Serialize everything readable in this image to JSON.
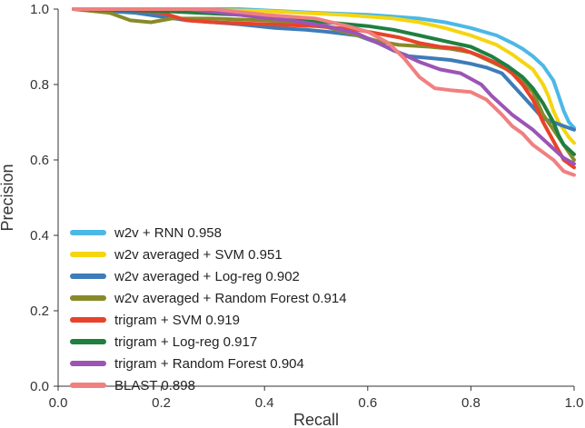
{
  "chart_data": {
    "type": "line",
    "title": "",
    "xlabel": "Recall",
    "ylabel": "Precision",
    "xlim": [
      0.0,
      1.0
    ],
    "ylim": [
      0.0,
      1.0
    ],
    "x_ticks": [
      "0.0",
      "0.2",
      "0.4",
      "0.6",
      "0.8",
      "1.0"
    ],
    "y_ticks": [
      "0.0",
      "0.2",
      "0.4",
      "0.6",
      "0.8",
      "1.0"
    ],
    "grid": false,
    "legend_position": "lower-left",
    "series": [
      {
        "name": "w2v + RNN 0.958",
        "color": "#4cb8e6",
        "points": [
          [
            0.03,
            1.0
          ],
          [
            0.2,
            1.0
          ],
          [
            0.35,
            1.0
          ],
          [
            0.5,
            0.99
          ],
          [
            0.6,
            0.985
          ],
          [
            0.65,
            0.98
          ],
          [
            0.7,
            0.975
          ],
          [
            0.75,
            0.965
          ],
          [
            0.8,
            0.95
          ],
          [
            0.85,
            0.93
          ],
          [
            0.88,
            0.91
          ],
          [
            0.9,
            0.895
          ],
          [
            0.92,
            0.875
          ],
          [
            0.94,
            0.85
          ],
          [
            0.96,
            0.81
          ],
          [
            0.97,
            0.77
          ],
          [
            0.98,
            0.73
          ],
          [
            0.99,
            0.7
          ],
          [
            1.0,
            0.685
          ]
        ]
      },
      {
        "name": "w2v averaged + SVM 0.951",
        "color": "#f5d50f",
        "points": [
          [
            0.03,
            1.0
          ],
          [
            0.2,
            1.0
          ],
          [
            0.4,
            0.995
          ],
          [
            0.55,
            0.985
          ],
          [
            0.65,
            0.975
          ],
          [
            0.7,
            0.965
          ],
          [
            0.75,
            0.95
          ],
          [
            0.8,
            0.93
          ],
          [
            0.85,
            0.905
          ],
          [
            0.88,
            0.88
          ],
          [
            0.9,
            0.86
          ],
          [
            0.92,
            0.84
          ],
          [
            0.94,
            0.8
          ],
          [
            0.95,
            0.77
          ],
          [
            0.96,
            0.73
          ],
          [
            0.97,
            0.7
          ],
          [
            0.98,
            0.68
          ],
          [
            0.99,
            0.66
          ],
          [
            1.0,
            0.645
          ]
        ]
      },
      {
        "name": "w2v averaged + Log-reg 0.902",
        "color": "#3d7cb8",
        "points": [
          [
            0.03,
            1.0
          ],
          [
            0.15,
            0.99
          ],
          [
            0.25,
            0.97
          ],
          [
            0.35,
            0.96
          ],
          [
            0.42,
            0.95
          ],
          [
            0.48,
            0.945
          ],
          [
            0.52,
            0.94
          ],
          [
            0.58,
            0.93
          ],
          [
            0.62,
            0.91
          ],
          [
            0.65,
            0.89
          ],
          [
            0.68,
            0.875
          ],
          [
            0.72,
            0.87
          ],
          [
            0.76,
            0.865
          ],
          [
            0.8,
            0.855
          ],
          [
            0.83,
            0.845
          ],
          [
            0.86,
            0.83
          ],
          [
            0.88,
            0.8
          ],
          [
            0.9,
            0.77
          ],
          [
            0.92,
            0.74
          ],
          [
            0.94,
            0.71
          ],
          [
            0.96,
            0.7
          ],
          [
            0.98,
            0.69
          ],
          [
            1.0,
            0.68
          ]
        ]
      },
      {
        "name": "w2v averaged + Random Forest 0.914",
        "color": "#888a2a",
        "points": [
          [
            0.03,
            1.0
          ],
          [
            0.1,
            0.99
          ],
          [
            0.14,
            0.97
          ],
          [
            0.18,
            0.965
          ],
          [
            0.22,
            0.975
          ],
          [
            0.3,
            0.975
          ],
          [
            0.4,
            0.97
          ],
          [
            0.5,
            0.96
          ],
          [
            0.58,
            0.93
          ],
          [
            0.62,
            0.915
          ],
          [
            0.66,
            0.905
          ],
          [
            0.72,
            0.9
          ],
          [
            0.76,
            0.895
          ],
          [
            0.8,
            0.885
          ],
          [
            0.84,
            0.86
          ],
          [
            0.87,
            0.84
          ],
          [
            0.9,
            0.81
          ],
          [
            0.92,
            0.78
          ],
          [
            0.94,
            0.72
          ],
          [
            0.96,
            0.68
          ],
          [
            0.98,
            0.64
          ],
          [
            1.0,
            0.6
          ]
        ]
      },
      {
        "name": "trigram + SVM 0.919",
        "color": "#e8432a",
        "points": [
          [
            0.03,
            1.0
          ],
          [
            0.12,
            1.0
          ],
          [
            0.2,
            0.99
          ],
          [
            0.25,
            0.97
          ],
          [
            0.3,
            0.965
          ],
          [
            0.4,
            0.96
          ],
          [
            0.5,
            0.955
          ],
          [
            0.58,
            0.945
          ],
          [
            0.62,
            0.935
          ],
          [
            0.66,
            0.925
          ],
          [
            0.7,
            0.91
          ],
          [
            0.74,
            0.9
          ],
          [
            0.78,
            0.895
          ],
          [
            0.82,
            0.875
          ],
          [
            0.86,
            0.85
          ],
          [
            0.88,
            0.83
          ],
          [
            0.9,
            0.8
          ],
          [
            0.92,
            0.76
          ],
          [
            0.94,
            0.7
          ],
          [
            0.96,
            0.65
          ],
          [
            0.98,
            0.6
          ],
          [
            1.0,
            0.58
          ]
        ]
      },
      {
        "name": "trigram + Log-reg 0.917",
        "color": "#1e8040",
        "points": [
          [
            0.03,
            1.0
          ],
          [
            0.2,
            0.995
          ],
          [
            0.35,
            0.985
          ],
          [
            0.45,
            0.975
          ],
          [
            0.52,
            0.965
          ],
          [
            0.6,
            0.955
          ],
          [
            0.65,
            0.945
          ],
          [
            0.7,
            0.93
          ],
          [
            0.75,
            0.915
          ],
          [
            0.8,
            0.9
          ],
          [
            0.84,
            0.875
          ],
          [
            0.87,
            0.85
          ],
          [
            0.9,
            0.82
          ],
          [
            0.92,
            0.79
          ],
          [
            0.94,
            0.75
          ],
          [
            0.96,
            0.7
          ],
          [
            0.97,
            0.665
          ],
          [
            0.98,
            0.64
          ],
          [
            1.0,
            0.615
          ]
        ]
      },
      {
        "name": "trigram + Random Forest 0.904",
        "color": "#9b55b5",
        "points": [
          [
            0.03,
            1.0
          ],
          [
            0.25,
            1.0
          ],
          [
            0.32,
            0.99
          ],
          [
            0.38,
            0.98
          ],
          [
            0.45,
            0.97
          ],
          [
            0.52,
            0.955
          ],
          [
            0.58,
            0.935
          ],
          [
            0.62,
            0.91
          ],
          [
            0.66,
            0.885
          ],
          [
            0.7,
            0.86
          ],
          [
            0.74,
            0.84
          ],
          [
            0.78,
            0.83
          ],
          [
            0.82,
            0.8
          ],
          [
            0.84,
            0.77
          ],
          [
            0.86,
            0.745
          ],
          [
            0.88,
            0.72
          ],
          [
            0.9,
            0.7
          ],
          [
            0.92,
            0.68
          ],
          [
            0.94,
            0.655
          ],
          [
            0.96,
            0.63
          ],
          [
            0.98,
            0.605
          ],
          [
            1.0,
            0.59
          ]
        ]
      },
      {
        "name": "BLAST 0.898",
        "color": "#f08080",
        "points": [
          [
            0.03,
            1.0
          ],
          [
            0.3,
            1.0
          ],
          [
            0.4,
            0.985
          ],
          [
            0.5,
            0.975
          ],
          [
            0.56,
            0.955
          ],
          [
            0.6,
            0.94
          ],
          [
            0.64,
            0.91
          ],
          [
            0.67,
            0.87
          ],
          [
            0.7,
            0.82
          ],
          [
            0.73,
            0.79
          ],
          [
            0.76,
            0.785
          ],
          [
            0.8,
            0.78
          ],
          [
            0.83,
            0.76
          ],
          [
            0.86,
            0.72
          ],
          [
            0.88,
            0.69
          ],
          [
            0.9,
            0.67
          ],
          [
            0.92,
            0.64
          ],
          [
            0.94,
            0.62
          ],
          [
            0.96,
            0.6
          ],
          [
            0.98,
            0.57
          ],
          [
            1.0,
            0.56
          ]
        ]
      }
    ]
  }
}
